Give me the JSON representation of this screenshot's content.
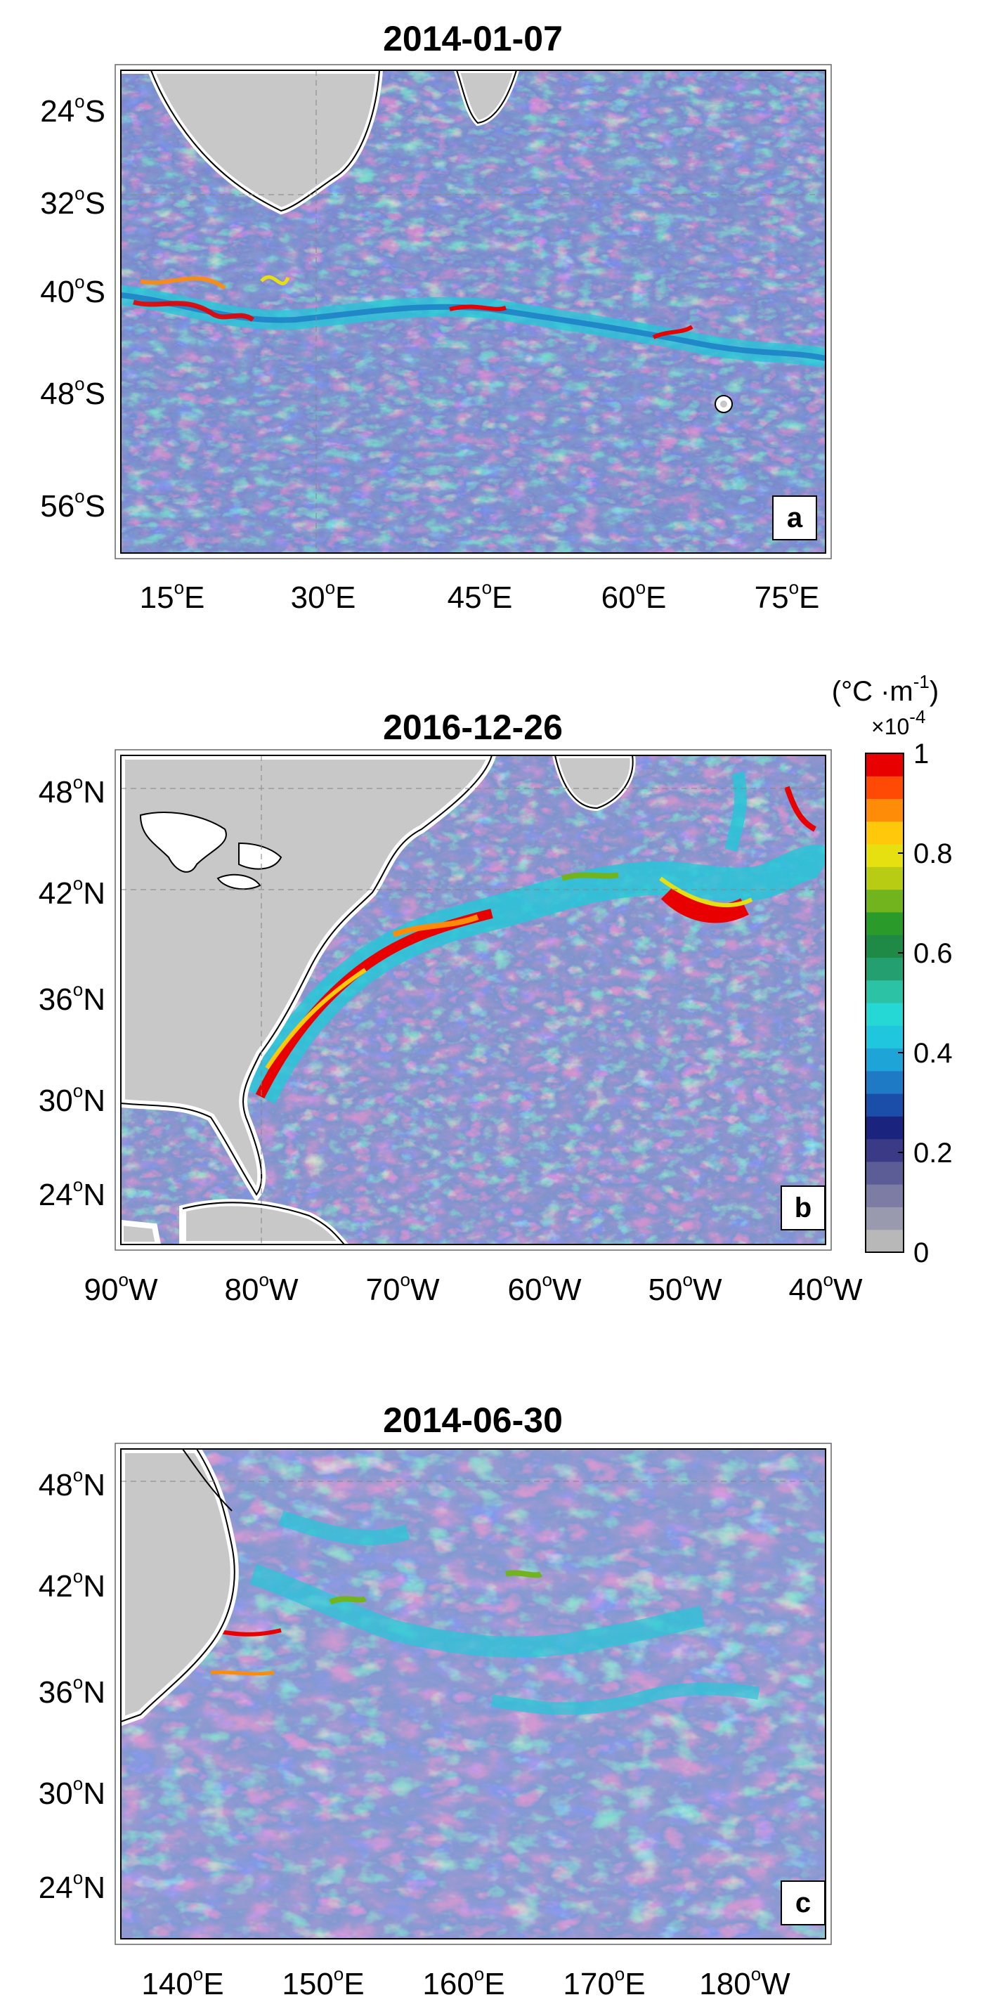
{
  "panels": [
    {
      "id": "a",
      "title": "2014-01-07",
      "panel_label": "a",
      "lat_ticks": [
        "24",
        "32",
        "40",
        "48",
        "56"
      ],
      "lat_hemisphere": "S",
      "lon_ticks": [
        "15",
        "30",
        "45",
        "60",
        "75"
      ],
      "lon_hemisphere": [
        "E",
        "E",
        "E",
        "E",
        "E"
      ]
    },
    {
      "id": "b",
      "title": "2016-12-26",
      "panel_label": "b",
      "lat_ticks": [
        "48",
        "42",
        "36",
        "30",
        "24"
      ],
      "lat_hemisphere": "N",
      "lon_ticks": [
        "90",
        "80",
        "70",
        "60",
        "50",
        "40"
      ],
      "lon_hemisphere": [
        "W",
        "W",
        "W",
        "W",
        "W",
        "W"
      ]
    },
    {
      "id": "c",
      "title": "2014-06-30",
      "panel_label": "c",
      "lat_ticks": [
        "48",
        "42",
        "36",
        "30",
        "24"
      ],
      "lat_hemisphere": "N",
      "lon_ticks": [
        "140",
        "150",
        "160",
        "170",
        "180"
      ],
      "lon_hemisphere": [
        "E",
        "E",
        "E",
        "E",
        "W"
      ]
    }
  ],
  "colorbar": {
    "unit_open": "(",
    "unit_core": "°C ·m",
    "unit_exp": "-1",
    "unit_close": ")",
    "scale_base": "×10",
    "scale_exp": "-4",
    "ticks": [
      "1",
      "0.8",
      "0.6",
      "0.4",
      "0.2",
      "0"
    ],
    "colors": [
      "#b8b8b8",
      "#9a9aae",
      "#7c7ca4",
      "#5c5c96",
      "#3a3a86",
      "#1a237e",
      "#1a4ea8",
      "#1f7ac6",
      "#1fa4d8",
      "#1fc6dd",
      "#25d8d6",
      "#2bc2a6",
      "#24a070",
      "#1e8a46",
      "#2a9a2a",
      "#72b41e",
      "#b8cc14",
      "#e6e010",
      "#ffc80a",
      "#ff8c08",
      "#ff4a06",
      "#e80000"
    ],
    "min": 0,
    "max": 1
  },
  "degree_symbol": "o"
}
